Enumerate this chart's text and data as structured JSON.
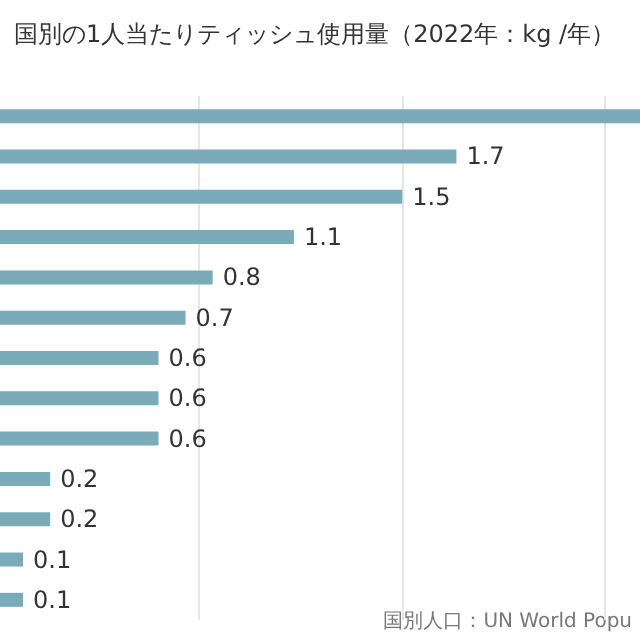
{
  "chart_data": {
    "type": "bar",
    "orientation": "horizontal",
    "title": "国別の1人当たりティッシュ使用量（2022年：kg /年）",
    "categories": [
      null,
      null,
      null,
      null,
      null,
      null,
      null,
      null,
      null,
      null,
      null,
      null,
      null
    ],
    "values": [
      2.4,
      1.7,
      1.5,
      1.1,
      0.8,
      0.7,
      0.6,
      0.6,
      0.6,
      0.2,
      0.2,
      0.1,
      0.1
    ],
    "value_labels": [
      null,
      "1.7",
      "1.5",
      "1.1",
      "0.8",
      "0.7",
      "0.6",
      "0.6",
      "0.6",
      "0.2",
      "0.2",
      "0.1",
      "0.1"
    ],
    "color": "#7aabb9",
    "xlim": [
      0,
      2.4
    ],
    "xticks": [
      {
        "value": 0.75,
        "label": null
      },
      {
        "value": 1.5,
        "label": null
      },
      {
        "value": 2.25,
        "label": null
      }
    ],
    "grid": "x",
    "annotations": [
      "国別人口：UN World Popu"
    ]
  }
}
